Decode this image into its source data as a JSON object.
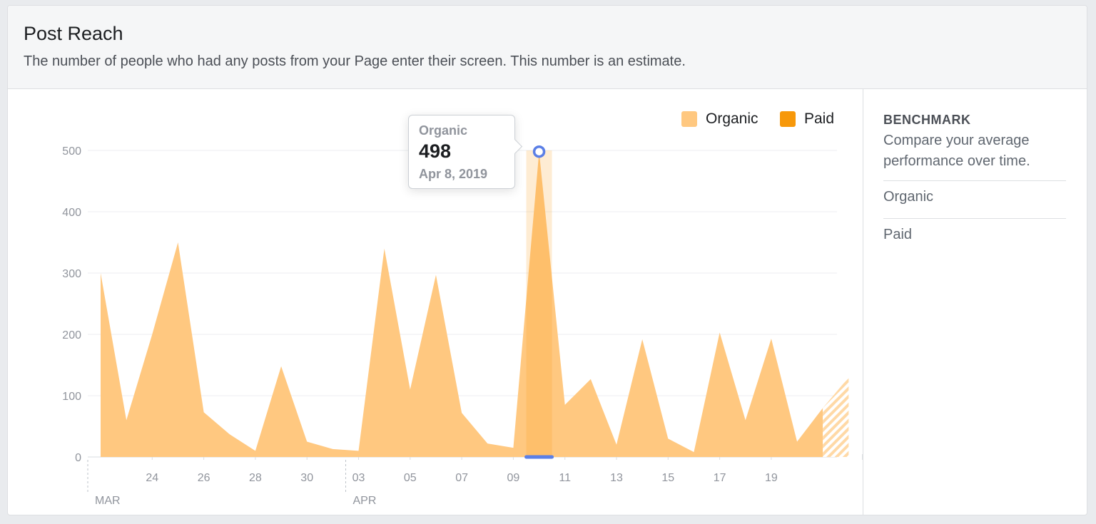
{
  "header": {
    "title": "Post Reach",
    "subtitle": "The number of people who had any posts from your Page enter their screen. This number is an estimate."
  },
  "benchmark": {
    "title": "BENCHMARK",
    "description": "Compare your average performance over time.",
    "items": [
      "Organic",
      "Paid"
    ]
  },
  "legend": [
    {
      "label": "Organic",
      "color": "#ffc880"
    },
    {
      "label": "Paid",
      "color": "#f7980a"
    }
  ],
  "tooltip": {
    "series": "Organic",
    "value": "498",
    "date": "Apr 8, 2019"
  },
  "chart_data": {
    "type": "area",
    "x": [
      "Mar 22",
      "Mar 23",
      "Mar 24",
      "Mar 25",
      "Mar 26",
      "Mar 27",
      "Mar 28",
      "Mar 29",
      "Mar 30",
      "Mar 31",
      "Apr 1",
      "Apr 2",
      "Apr 3",
      "Apr 4",
      "Apr 5",
      "Apr 6",
      "Apr 7",
      "Apr 8",
      "Apr 9",
      "Apr 10",
      "Apr 11",
      "Apr 12",
      "Apr 13",
      "Apr 14",
      "Apr 15",
      "Apr 16",
      "Apr 17",
      "Apr 18",
      "Apr 19",
      "Apr 20"
    ],
    "series": [
      {
        "name": "Organic",
        "color": "#ffc880",
        "values": [
          300,
          60,
          200,
          350,
          73,
          37,
          10,
          148,
          25,
          13,
          10,
          340,
          110,
          297,
          72,
          22,
          15,
          498,
          85,
          127,
          20,
          192,
          30,
          8,
          203,
          60,
          193,
          25,
          80,
          130
        ]
      },
      {
        "name": "Paid",
        "color": "#f7980a",
        "values": [
          0,
          0,
          0,
          0,
          0,
          0,
          0,
          0,
          0,
          0,
          0,
          0,
          0,
          0,
          0,
          0,
          0,
          0,
          0,
          0,
          0,
          0,
          0,
          0,
          0,
          0,
          0,
          0,
          0,
          0
        ]
      }
    ],
    "ylim": [
      0,
      500
    ],
    "yticks": [
      0,
      100,
      200,
      300,
      400,
      500
    ],
    "xtick_labels": [
      "24",
      "26",
      "28",
      "30",
      "03",
      "05",
      "07",
      "09",
      "11",
      "13",
      "15",
      "17",
      "19"
    ],
    "month_labels": [
      "MAR",
      "APR"
    ],
    "highlight": "Apr 8",
    "partial_last_point": true,
    "grid": true,
    "legend_position": "top-right"
  }
}
